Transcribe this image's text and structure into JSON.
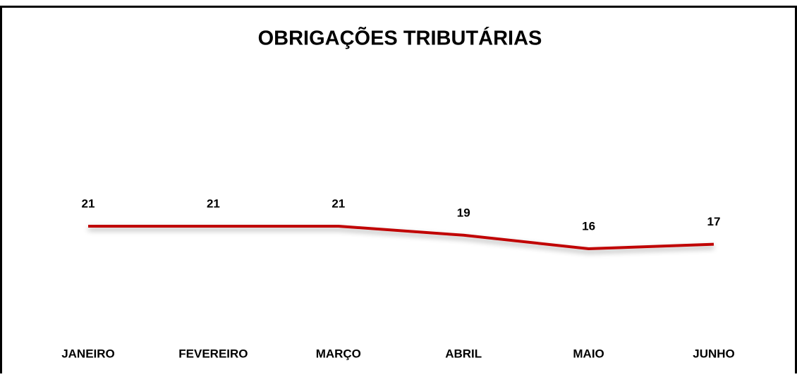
{
  "chart_data": {
    "type": "line",
    "title": "OBRIGAÇÕES TRIBUTÁRIAS",
    "categories": [
      "JANEIRO",
      "FEVEREIRO",
      "MARÇO",
      "ABRIL",
      "MAIO",
      "JUNHO"
    ],
    "series": [
      {
        "name": null,
        "color": "#c00000",
        "values": [
          21,
          21,
          21,
          19,
          16,
          17
        ]
      }
    ]
  }
}
